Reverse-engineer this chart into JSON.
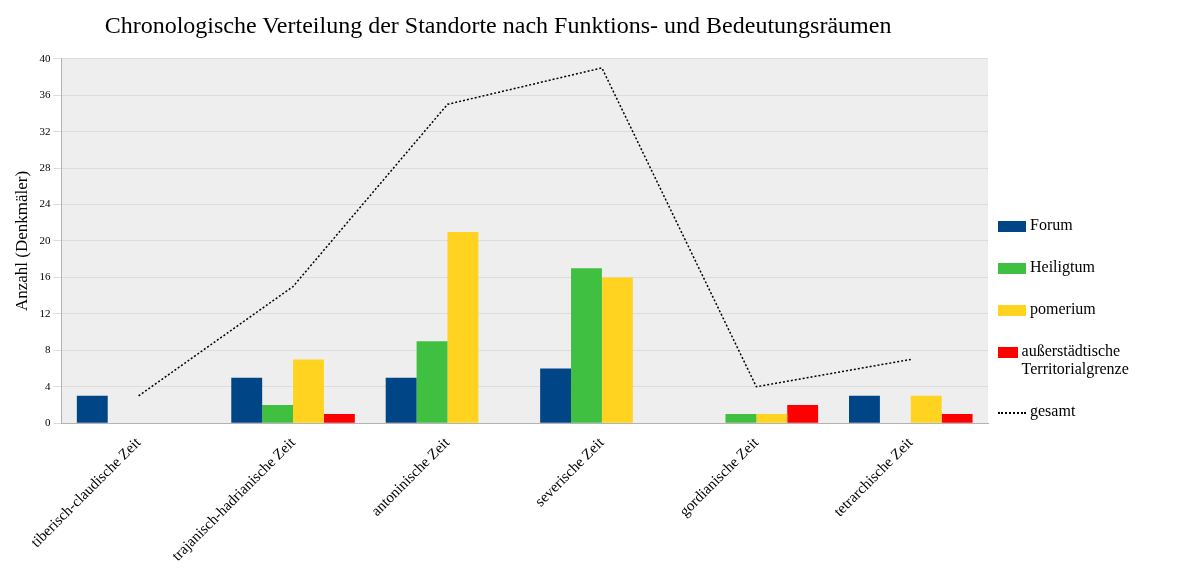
{
  "chart_data": {
    "type": "bar",
    "title": "Chronologische Verteilung der Standorte nach Funktions- und Bedeutungsräumen",
    "ylabel": "Anzahl (Denkmäler)",
    "categories": [
      "tiberisch-claudische Zeit",
      "trajanisch-hadrianische Zeit",
      "antoninische Zeit",
      "severische Zeit",
      "gordianische Zeit",
      "tetrarchische Zeit"
    ],
    "series": [
      {
        "name": "Forum",
        "color": "#004586",
        "values": [
          3,
          5,
          5,
          6,
          0,
          3
        ]
      },
      {
        "name": "Heiligtum",
        "color": "#40c040",
        "values": [
          0,
          2,
          9,
          17,
          1,
          0
        ]
      },
      {
        "name": "pomerium",
        "color": "#ffd320",
        "values": [
          0,
          7,
          21,
          16,
          1,
          3
        ]
      },
      {
        "name": "außerstädtische Territorialgrenze",
        "color": "#ff0000",
        "values": [
          0,
          1,
          0,
          0,
          2,
          1
        ]
      },
      {
        "name": "gesamt",
        "type": "line",
        "color": "#000000",
        "line_style": "dotted",
        "marker": "none",
        "values": [
          3,
          15,
          35,
          39,
          4,
          7
        ]
      }
    ],
    "ylim": [
      0,
      40
    ],
    "yticks": [
      0,
      4,
      8,
      12,
      16,
      20,
      24,
      28,
      32,
      36,
      40
    ],
    "grid": "y",
    "legend": "right"
  }
}
